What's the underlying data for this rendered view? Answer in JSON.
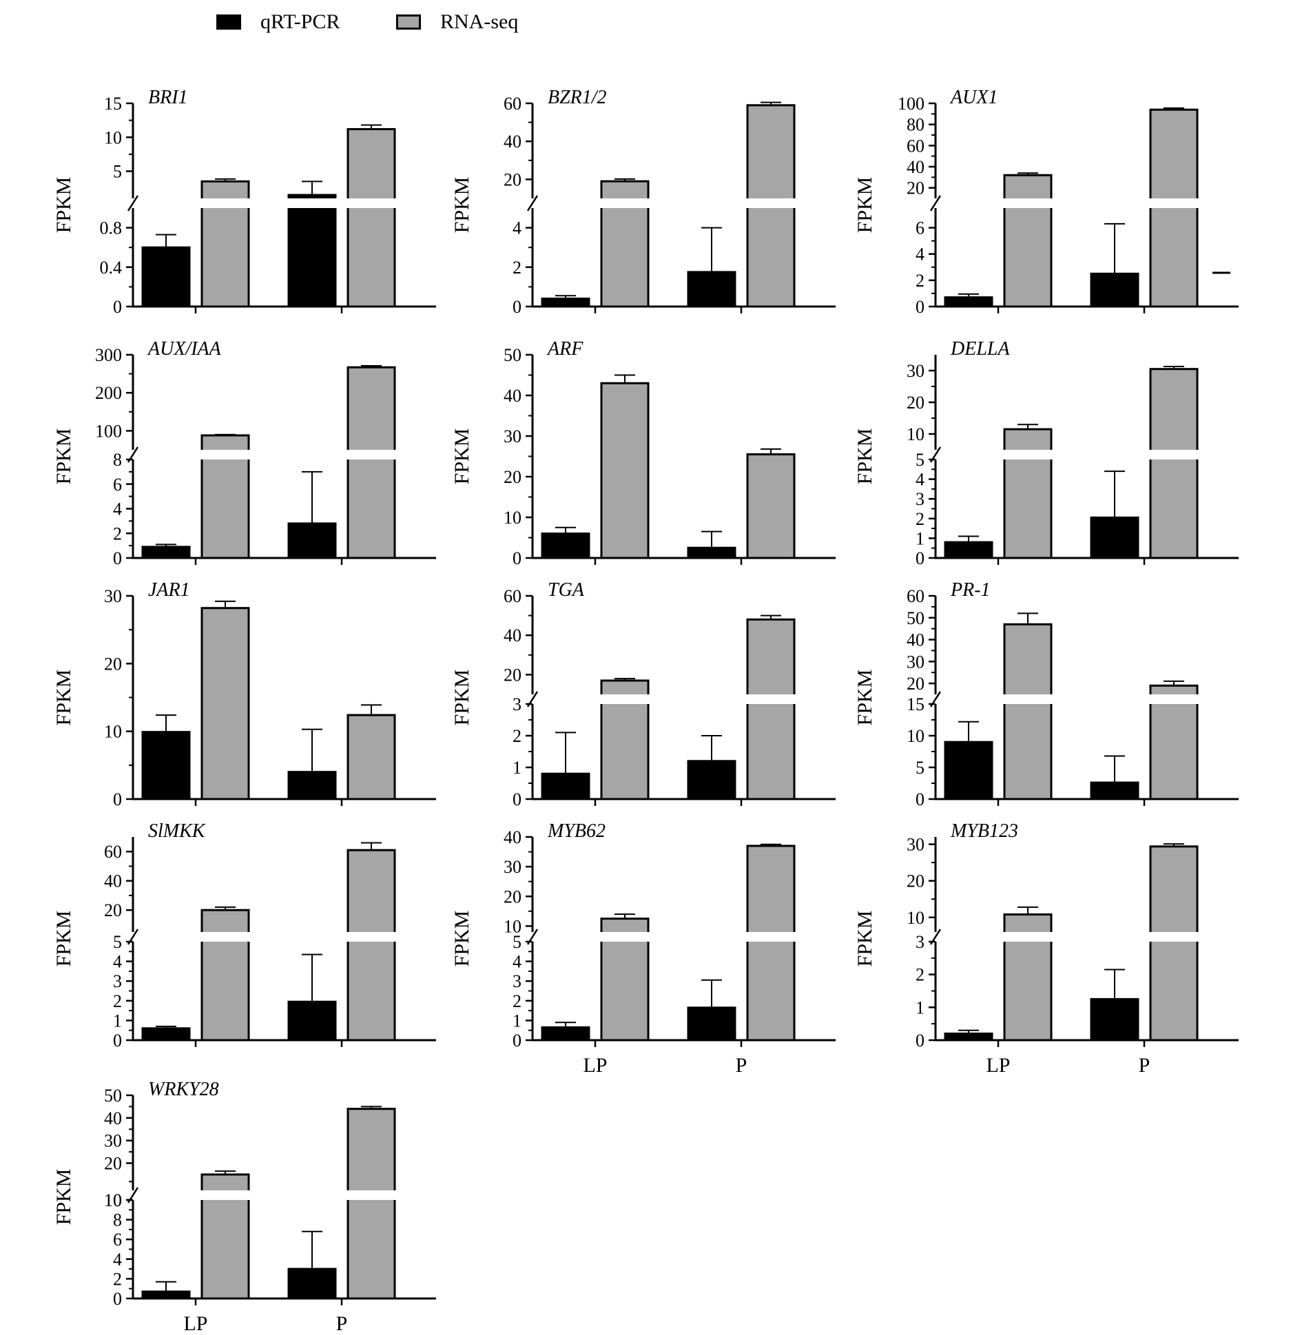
{
  "legend": [
    {
      "label": "qRT-PCR",
      "color": "#000000"
    },
    {
      "label": "RNA-seq",
      "color": "#a6a6a6"
    }
  ],
  "chart_data": [
    {
      "type": "bar",
      "gene": "BRI1",
      "ylabel": "FPKM",
      "categories": [
        "",
        ""
      ],
      "series": [
        {
          "name": "qRT-PCR",
          "values": [
            0.6,
            1.5
          ],
          "errors": [
            0.13,
            2.0
          ]
        },
        {
          "name": "RNA-seq",
          "values": [
            3.5,
            11.2
          ],
          "errors": [
            0.35,
            0.6
          ]
        }
      ],
      "lower": {
        "range": [
          0,
          1.0
        ],
        "ticks": [
          "0",
          "0.4",
          "0.8"
        ]
      },
      "upper": {
        "range": [
          1.0,
          15
        ],
        "ticks": [
          "5",
          "10",
          "15"
        ]
      }
    },
    {
      "type": "bar",
      "gene": "BZR1/2",
      "ylabel": "FPKM",
      "categories": [
        "",
        ""
      ],
      "series": [
        {
          "name": "qRT-PCR",
          "values": [
            0.4,
            1.75
          ],
          "errors": [
            0.15,
            2.25
          ]
        },
        {
          "name": "RNA-seq",
          "values": [
            19,
            59
          ],
          "errors": [
            1.2,
            1.5
          ]
        }
      ],
      "lower": {
        "range": [
          0,
          5
        ],
        "ticks": [
          "0",
          "2",
          "4"
        ]
      },
      "upper": {
        "range": [
          10,
          60
        ],
        "ticks": [
          "20",
          "40",
          "60"
        ]
      }
    },
    {
      "type": "bar",
      "gene": "AUX1",
      "ylabel": "FPKM",
      "categories": [
        "",
        ""
      ],
      "series": [
        {
          "name": "qRT-PCR",
          "values": [
            0.7,
            2.5
          ],
          "errors": [
            0.25,
            3.8
          ]
        },
        {
          "name": "RNA-seq",
          "values": [
            32,
            94
          ],
          "errors": [
            2,
            1.5
          ]
        }
      ],
      "lower": {
        "range": [
          0,
          7.5
        ],
        "ticks": [
          "0",
          "2",
          "4",
          "6"
        ]
      },
      "upper": {
        "range": [
          10,
          100
        ],
        "ticks": [
          "20",
          "40",
          "60",
          "80",
          "100"
        ]
      }
    },
    {
      "type": "bar",
      "gene": "AUX/IAA",
      "ylabel": "FPKM",
      "categories": [
        "",
        ""
      ],
      "series": [
        {
          "name": "qRT-PCR",
          "values": [
            0.9,
            2.8
          ],
          "errors": [
            0.2,
            4.2
          ]
        },
        {
          "name": "RNA-seq",
          "values": [
            88,
            267
          ],
          "errors": [
            2,
            4
          ]
        }
      ],
      "lower": {
        "range": [
          0,
          8
        ],
        "ticks": [
          "0",
          "2",
          "4",
          "6",
          "8"
        ]
      },
      "upper": {
        "range": [
          50,
          300
        ],
        "ticks": [
          "100",
          "200",
          "300"
        ]
      }
    },
    {
      "type": "bar",
      "gene": "ARF",
      "ylabel": "FPKM",
      "categories": [
        "",
        ""
      ],
      "series": [
        {
          "name": "qRT-PCR",
          "values": [
            6,
            2.5
          ],
          "errors": [
            1.5,
            4
          ]
        },
        {
          "name": "RNA-seq",
          "values": [
            43,
            25.5
          ],
          "errors": [
            2,
            1.3
          ]
        }
      ],
      "single": {
        "range": [
          0,
          50
        ],
        "ticks": [
          "0",
          "10",
          "20",
          "30",
          "40",
          "50"
        ]
      }
    },
    {
      "type": "bar",
      "gene": "DELLA",
      "ylabel": "FPKM",
      "categories": [
        "",
        ""
      ],
      "series": [
        {
          "name": "qRT-PCR",
          "values": [
            0.8,
            2.05
          ],
          "errors": [
            0.3,
            2.35
          ]
        },
        {
          "name": "RNA-seq",
          "values": [
            11.5,
            30.5
          ],
          "errors": [
            1.5,
            0.8
          ]
        }
      ],
      "lower": {
        "range": [
          0,
          5
        ],
        "ticks": [
          "0",
          "1",
          "2",
          "3",
          "4",
          "5"
        ]
      },
      "upper": {
        "range": [
          5,
          35
        ],
        "ticks": [
          "10",
          "20",
          "30"
        ]
      }
    },
    {
      "type": "bar",
      "gene": "JAR1",
      "ylabel": "FPKM",
      "categories": [
        "",
        ""
      ],
      "series": [
        {
          "name": "qRT-PCR",
          "values": [
            9.9,
            4.0
          ],
          "errors": [
            2.5,
            6.3
          ]
        },
        {
          "name": "RNA-seq",
          "values": [
            28.2,
            12.4
          ],
          "errors": [
            1,
            1.5
          ]
        }
      ],
      "single": {
        "range": [
          0,
          30
        ],
        "ticks": [
          "0",
          "10",
          "20",
          "30"
        ]
      }
    },
    {
      "type": "bar",
      "gene": "TGA",
      "ylabel": "FPKM",
      "categories": [
        "",
        ""
      ],
      "series": [
        {
          "name": "qRT-PCR",
          "values": [
            0.8,
            1.2
          ],
          "errors": [
            1.3,
            0.8
          ]
        },
        {
          "name": "RNA-seq",
          "values": [
            17,
            48
          ],
          "errors": [
            1,
            2
          ]
        }
      ],
      "lower": {
        "range": [
          0,
          3
        ],
        "ticks": [
          "0",
          "1",
          "2",
          "3"
        ]
      },
      "upper": {
        "range": [
          10,
          60
        ],
        "ticks": [
          "20",
          "40",
          "60"
        ]
      }
    },
    {
      "type": "bar",
      "gene": "PR-1",
      "ylabel": "FPKM",
      "categories": [
        "",
        ""
      ],
      "series": [
        {
          "name": "qRT-PCR",
          "values": [
            9,
            2.6
          ],
          "errors": [
            3.2,
            4.2
          ]
        },
        {
          "name": "RNA-seq",
          "values": [
            47,
            19
          ],
          "errors": [
            5,
            2
          ]
        }
      ],
      "lower": {
        "range": [
          0,
          15
        ],
        "ticks": [
          "0",
          "5",
          "10",
          "15"
        ]
      },
      "upper": {
        "range": [
          15,
          60
        ],
        "ticks": [
          "20",
          "30",
          "40",
          "50",
          "60"
        ]
      }
    },
    {
      "type": "bar",
      "gene": "SlMKK",
      "ylabel": "FPKM",
      "categories": [
        "",
        ""
      ],
      "series": [
        {
          "name": "qRT-PCR",
          "values": [
            0.6,
            1.95
          ],
          "errors": [
            0.1,
            2.4
          ]
        },
        {
          "name": "RNA-seq",
          "values": [
            20,
            61
          ],
          "errors": [
            2,
            5
          ]
        }
      ],
      "lower": {
        "range": [
          0,
          5
        ],
        "ticks": [
          "0",
          "1",
          "2",
          "3",
          "4",
          "5"
        ]
      },
      "upper": {
        "range": [
          5,
          70
        ],
        "ticks": [
          "20",
          "40",
          "60"
        ]
      }
    },
    {
      "type": "bar",
      "gene": "MYB62",
      "ylabel": "FPKM",
      "categories": [
        "LP",
        "P"
      ],
      "series": [
        {
          "name": "qRT-PCR",
          "values": [
            0.65,
            1.65
          ],
          "errors": [
            0.25,
            1.4
          ]
        },
        {
          "name": "RNA-seq",
          "values": [
            12.5,
            37
          ],
          "errors": [
            1.5,
            0.5
          ]
        }
      ],
      "lower": {
        "range": [
          0,
          5
        ],
        "ticks": [
          "0",
          "1",
          "2",
          "3",
          "4",
          "5"
        ]
      },
      "upper": {
        "range": [
          8,
          40
        ],
        "ticks": [
          "10",
          "20",
          "30",
          "40"
        ]
      }
    },
    {
      "type": "bar",
      "gene": "MYB123",
      "ylabel": "FPKM",
      "categories": [
        "LP",
        "P"
      ],
      "series": [
        {
          "name": "qRT-PCR",
          "values": [
            0.2,
            1.25
          ],
          "errors": [
            0.1,
            0.9
          ]
        },
        {
          "name": "RNA-seq",
          "values": [
            10.8,
            29.4
          ],
          "errors": [
            2,
            0.7
          ]
        }
      ],
      "lower": {
        "range": [
          0,
          3
        ],
        "ticks": [
          "0",
          "1",
          "2",
          "3"
        ]
      },
      "upper": {
        "range": [
          6,
          32
        ],
        "ticks": [
          "10",
          "20",
          "30"
        ]
      }
    },
    {
      "type": "bar",
      "gene": "WRKY28",
      "ylabel": "FPKM",
      "categories": [
        "LP",
        "P"
      ],
      "series": [
        {
          "name": "qRT-PCR",
          "values": [
            0.7,
            3.0
          ],
          "errors": [
            1.0,
            3.8
          ]
        },
        {
          "name": "RNA-seq",
          "values": [
            15,
            44
          ],
          "errors": [
            1.5,
            1
          ]
        }
      ],
      "lower": {
        "range": [
          0,
          10
        ],
        "ticks": [
          "0",
          "2",
          "4",
          "6",
          "8",
          "10"
        ]
      },
      "upper": {
        "range": [
          8,
          50
        ],
        "ticks": [
          "10",
          "20",
          "30",
          "40",
          "50"
        ]
      }
    }
  ]
}
